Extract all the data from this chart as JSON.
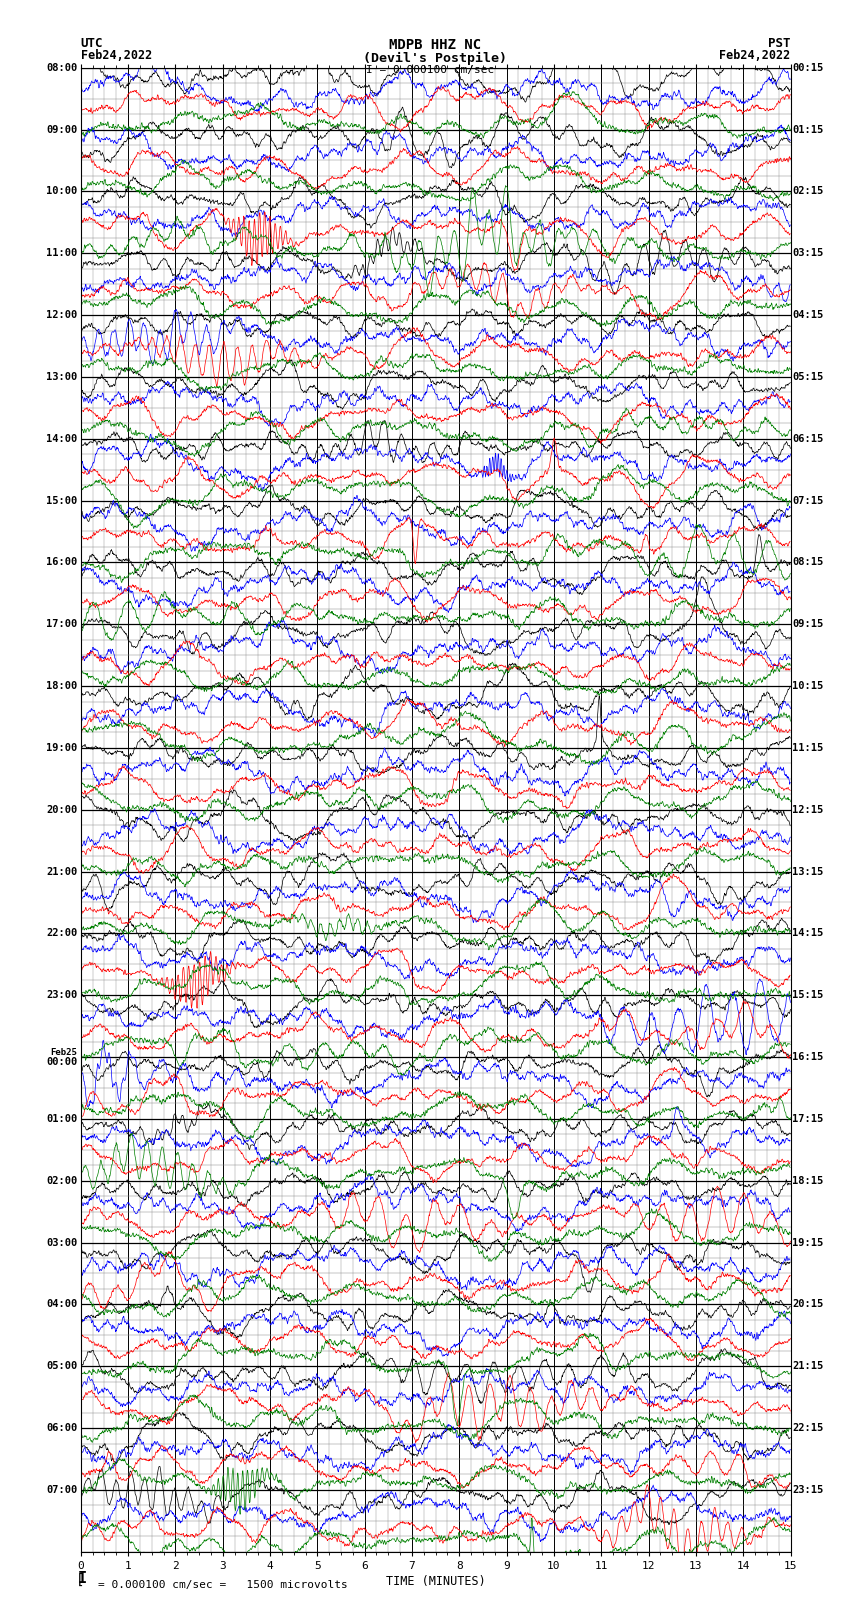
{
  "title_line1": "MDPB HHZ NC",
  "title_line2": "(Devil's Postpile)",
  "title_scale": "I = 0.000100 cm/sec",
  "label_left_top": "UTC",
  "label_left_date": "Feb24,2022",
  "label_right_top": "PST",
  "label_right_date": "Feb24,2022",
  "xlabel": "TIME (MINUTES)",
  "bottom_note": "= 0.000100 cm/sec =   1500 microvolts",
  "xlim": [
    0,
    15
  ],
  "colors": [
    "black",
    "blue",
    "red",
    "green"
  ],
  "bg_color": "#ffffff",
  "grid_major_color": "#000000",
  "grid_minor_color": "#888888",
  "utc_times_left": [
    "08:00",
    "09:00",
    "10:00",
    "11:00",
    "12:00",
    "13:00",
    "14:00",
    "15:00",
    "16:00",
    "17:00",
    "18:00",
    "19:00",
    "20:00",
    "21:00",
    "22:00",
    "23:00",
    "00:00",
    "01:00",
    "02:00",
    "03:00",
    "04:00",
    "05:00",
    "06:00",
    "07:00"
  ],
  "pst_times_right": [
    "00:15",
    "01:15",
    "02:15",
    "03:15",
    "04:15",
    "05:15",
    "06:15",
    "07:15",
    "08:15",
    "09:15",
    "10:15",
    "11:15",
    "12:15",
    "13:15",
    "14:15",
    "15:15",
    "16:15",
    "17:15",
    "18:15",
    "19:15",
    "20:15",
    "21:15",
    "22:15",
    "23:15"
  ],
  "num_rows": 24,
  "traces_per_row": 4,
  "line_width": 0.5,
  "fig_width": 8.5,
  "fig_height": 16.13,
  "dpi": 100,
  "minor_subdivisions": 4
}
